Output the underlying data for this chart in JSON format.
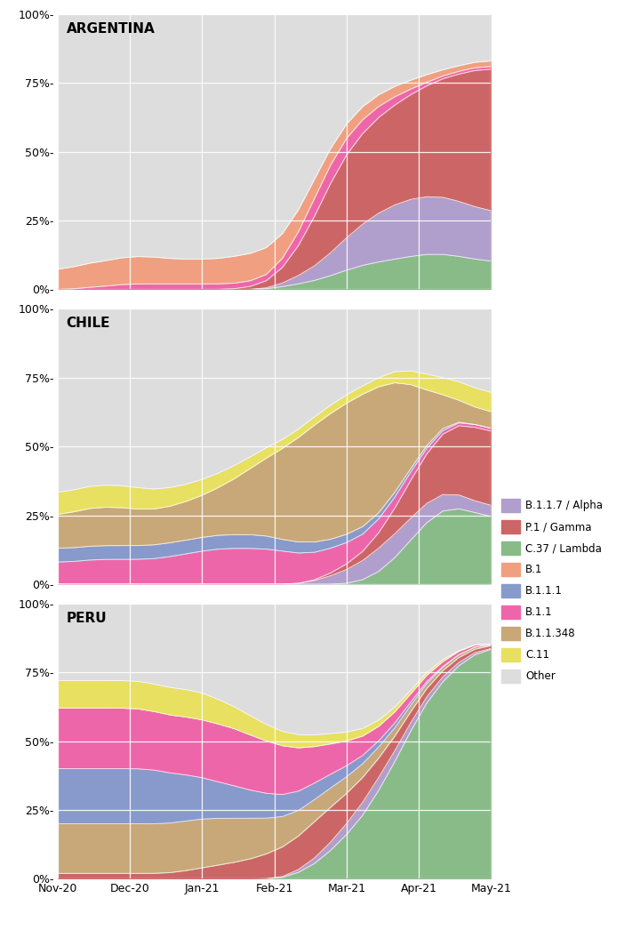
{
  "colors": {
    "B.1.1.7 / Alpha": "#b09fcc",
    "P.1 / Gamma": "#cc6666",
    "C.37 / Lambda": "#88bb88",
    "B.1": "#f0a080",
    "B.1.1.1": "#8899cc",
    "B.1.1": "#ee66aa",
    "B.1.1.348": "#c8a878",
    "C.11": "#e8e060",
    "Other": "#dddddd"
  },
  "legend_order": [
    "B.1.1.7 / Alpha",
    "P.1 / Gamma",
    "C.37 / Lambda",
    "B.1",
    "B.1.1.1",
    "B.1.1",
    "B.1.1.348",
    "C.11",
    "Other"
  ],
  "x_ticks": [
    "Nov-20",
    "Dec-20",
    "Jan-21",
    "Feb-21",
    "Mar-21",
    "Apr-21",
    "May-21"
  ],
  "n_points": 28,
  "argentina": {
    "title": "ARGENTINA",
    "stack_order": [
      "C.37 / Lambda",
      "B.1.1.7 / Alpha",
      "P.1 / Gamma",
      "B.1.1",
      "B.1",
      "Other"
    ],
    "C.37 / Lambda": [
      0.0,
      0.0,
      0.0,
      0.0,
      0.0,
      0.0,
      0.0,
      0.0,
      0.0,
      0.0,
      0.0,
      0.0,
      0.0,
      0.0,
      0.01,
      0.02,
      0.03,
      0.05,
      0.07,
      0.09,
      0.1,
      0.11,
      0.12,
      0.13,
      0.13,
      0.12,
      0.11,
      0.1
    ],
    "B.1.1.7 / Alpha": [
      0.0,
      0.0,
      0.0,
      0.0,
      0.0,
      0.0,
      0.0,
      0.0,
      0.0,
      0.0,
      0.0,
      0.0,
      0.0,
      0.0,
      0.01,
      0.03,
      0.05,
      0.08,
      0.12,
      0.15,
      0.18,
      0.2,
      0.21,
      0.21,
      0.21,
      0.2,
      0.19,
      0.18
    ],
    "P.1 / Gamma": [
      0.0,
      0.0,
      0.0,
      0.0,
      0.0,
      0.0,
      0.0,
      0.0,
      0.0,
      0.0,
      0.0,
      0.0,
      0.01,
      0.02,
      0.05,
      0.1,
      0.18,
      0.26,
      0.31,
      0.33,
      0.35,
      0.36,
      0.38,
      0.4,
      0.43,
      0.46,
      0.5,
      0.52
    ],
    "B.1.1": [
      0.0,
      0.0,
      0.01,
      0.01,
      0.02,
      0.02,
      0.02,
      0.02,
      0.02,
      0.02,
      0.02,
      0.02,
      0.02,
      0.02,
      0.03,
      0.05,
      0.07,
      0.07,
      0.06,
      0.05,
      0.04,
      0.03,
      0.02,
      0.01,
      0.01,
      0.01,
      0.01,
      0.01
    ],
    "B.1": [
      0.07,
      0.08,
      0.09,
      0.09,
      0.1,
      0.1,
      0.1,
      0.09,
      0.09,
      0.09,
      0.09,
      0.1,
      0.1,
      0.1,
      0.09,
      0.08,
      0.07,
      0.06,
      0.05,
      0.05,
      0.04,
      0.04,
      0.03,
      0.03,
      0.02,
      0.02,
      0.02,
      0.02
    ],
    "Other": [
      0.93,
      0.92,
      0.9,
      0.9,
      0.88,
      0.88,
      0.88,
      0.89,
      0.89,
      0.89,
      0.89,
      0.88,
      0.87,
      0.86,
      0.81,
      0.72,
      0.6,
      0.48,
      0.39,
      0.33,
      0.29,
      0.26,
      0.24,
      0.22,
      0.2,
      0.19,
      0.17,
      0.17
    ]
  },
  "chile": {
    "title": "CHILE",
    "stack_order": [
      "C.37 / Lambda",
      "B.1.1.7 / Alpha",
      "P.1 / Gamma",
      "B.1.1",
      "B.1.1.1",
      "B.1.1.348",
      "C.11",
      "Other"
    ],
    "C.37 / Lambda": [
      0.0,
      0.0,
      0.0,
      0.0,
      0.0,
      0.0,
      0.0,
      0.0,
      0.0,
      0.0,
      0.0,
      0.0,
      0.0,
      0.0,
      0.0,
      0.0,
      0.0,
      0.0,
      0.0,
      0.01,
      0.04,
      0.09,
      0.16,
      0.23,
      0.28,
      0.28,
      0.26,
      0.24
    ],
    "B.1.1.7 / Alpha": [
      0.0,
      0.0,
      0.0,
      0.0,
      0.0,
      0.0,
      0.0,
      0.0,
      0.0,
      0.0,
      0.0,
      0.0,
      0.0,
      0.0,
      0.0,
      0.0,
      0.01,
      0.03,
      0.05,
      0.07,
      0.09,
      0.09,
      0.08,
      0.07,
      0.06,
      0.05,
      0.04,
      0.04
    ],
    "P.1 / Gamma": [
      0.0,
      0.0,
      0.0,
      0.0,
      0.0,
      0.0,
      0.0,
      0.0,
      0.0,
      0.0,
      0.0,
      0.0,
      0.0,
      0.0,
      0.0,
      0.0,
      0.0,
      0.01,
      0.02,
      0.03,
      0.05,
      0.09,
      0.14,
      0.18,
      0.22,
      0.26,
      0.27,
      0.27
    ],
    "B.1.1": [
      0.08,
      0.08,
      0.09,
      0.09,
      0.09,
      0.09,
      0.09,
      0.1,
      0.11,
      0.12,
      0.13,
      0.13,
      0.13,
      0.13,
      0.12,
      0.11,
      0.1,
      0.09,
      0.08,
      0.06,
      0.05,
      0.04,
      0.03,
      0.02,
      0.01,
      0.01,
      0.01,
      0.01
    ],
    "B.1.1.1": [
      0.05,
      0.05,
      0.05,
      0.05,
      0.05,
      0.05,
      0.05,
      0.05,
      0.05,
      0.05,
      0.05,
      0.05,
      0.05,
      0.05,
      0.04,
      0.04,
      0.04,
      0.03,
      0.03,
      0.03,
      0.02,
      0.02,
      0.01,
      0.01,
      0.01,
      0.0,
      0.0,
      0.0
    ],
    "B.1.1.348": [
      0.12,
      0.13,
      0.14,
      0.14,
      0.14,
      0.13,
      0.13,
      0.13,
      0.14,
      0.15,
      0.17,
      0.2,
      0.24,
      0.28,
      0.33,
      0.38,
      0.43,
      0.46,
      0.48,
      0.49,
      0.47,
      0.41,
      0.31,
      0.19,
      0.11,
      0.07,
      0.06,
      0.06
    ],
    "C.11": [
      0.08,
      0.08,
      0.08,
      0.08,
      0.08,
      0.08,
      0.07,
      0.07,
      0.06,
      0.06,
      0.05,
      0.05,
      0.04,
      0.04,
      0.03,
      0.03,
      0.03,
      0.03,
      0.03,
      0.03,
      0.03,
      0.04,
      0.05,
      0.06,
      0.06,
      0.07,
      0.07,
      0.07
    ],
    "Other": [
      0.67,
      0.66,
      0.64,
      0.64,
      0.64,
      0.65,
      0.66,
      0.65,
      0.64,
      0.62,
      0.6,
      0.57,
      0.54,
      0.5,
      0.48,
      0.44,
      0.39,
      0.35,
      0.31,
      0.28,
      0.25,
      0.22,
      0.22,
      0.24,
      0.25,
      0.26,
      0.29,
      0.31
    ]
  },
  "peru": {
    "title": "PERU",
    "stack_order": [
      "C.37 / Lambda",
      "B.1.1.7 / Alpha",
      "P.1 / Gamma",
      "B.1.1.348",
      "B.1.1.1",
      "B.1.1",
      "C.11",
      "Other"
    ],
    "C.37 / Lambda": [
      0.0,
      0.0,
      0.0,
      0.0,
      0.0,
      0.0,
      0.0,
      0.0,
      0.0,
      0.0,
      0.0,
      0.0,
      0.0,
      0.0,
      0.0,
      0.02,
      0.05,
      0.1,
      0.16,
      0.22,
      0.32,
      0.42,
      0.54,
      0.65,
      0.72,
      0.78,
      0.82,
      0.84
    ],
    "B.1.1.7 / Alpha": [
      0.0,
      0.0,
      0.0,
      0.0,
      0.0,
      0.0,
      0.0,
      0.0,
      0.0,
      0.0,
      0.0,
      0.0,
      0.0,
      0.0,
      0.0,
      0.01,
      0.02,
      0.03,
      0.04,
      0.05,
      0.05,
      0.04,
      0.03,
      0.02,
      0.02,
      0.01,
      0.01,
      0.0
    ],
    "P.1 / Gamma": [
      0.02,
      0.02,
      0.02,
      0.02,
      0.02,
      0.02,
      0.02,
      0.02,
      0.03,
      0.04,
      0.05,
      0.06,
      0.07,
      0.09,
      0.11,
      0.12,
      0.14,
      0.13,
      0.11,
      0.09,
      0.07,
      0.05,
      0.04,
      0.03,
      0.02,
      0.02,
      0.01,
      0.01
    ],
    "B.1.1.348": [
      0.18,
      0.18,
      0.18,
      0.18,
      0.18,
      0.18,
      0.18,
      0.18,
      0.18,
      0.18,
      0.17,
      0.16,
      0.15,
      0.13,
      0.11,
      0.09,
      0.08,
      0.07,
      0.06,
      0.05,
      0.04,
      0.03,
      0.02,
      0.02,
      0.01,
      0.01,
      0.01,
      0.0
    ],
    "B.1.1.1": [
      0.2,
      0.2,
      0.2,
      0.2,
      0.2,
      0.2,
      0.2,
      0.18,
      0.17,
      0.15,
      0.13,
      0.12,
      0.1,
      0.09,
      0.08,
      0.07,
      0.06,
      0.05,
      0.04,
      0.03,
      0.02,
      0.02,
      0.01,
      0.01,
      0.0,
      0.0,
      0.0,
      0.0
    ],
    "B.1.1": [
      0.22,
      0.22,
      0.22,
      0.22,
      0.22,
      0.22,
      0.21,
      0.21,
      0.21,
      0.21,
      0.21,
      0.21,
      0.2,
      0.19,
      0.18,
      0.16,
      0.13,
      0.11,
      0.09,
      0.07,
      0.05,
      0.04,
      0.03,
      0.02,
      0.02,
      0.01,
      0.01,
      0.0
    ],
    "C.11": [
      0.1,
      0.1,
      0.1,
      0.1,
      0.1,
      0.1,
      0.1,
      0.1,
      0.1,
      0.1,
      0.09,
      0.08,
      0.07,
      0.06,
      0.05,
      0.05,
      0.04,
      0.04,
      0.03,
      0.03,
      0.02,
      0.02,
      0.01,
      0.01,
      0.01,
      0.0,
      0.0,
      0.0
    ],
    "Other": [
      0.28,
      0.28,
      0.28,
      0.28,
      0.28,
      0.28,
      0.29,
      0.31,
      0.31,
      0.32,
      0.35,
      0.37,
      0.41,
      0.44,
      0.47,
      0.48,
      0.48,
      0.47,
      0.47,
      0.46,
      0.43,
      0.38,
      0.32,
      0.24,
      0.2,
      0.17,
      0.14,
      0.15
    ]
  },
  "bg_color": "#e5e5e5",
  "fig_bg": "#ffffff",
  "grid_color": "#ffffff"
}
